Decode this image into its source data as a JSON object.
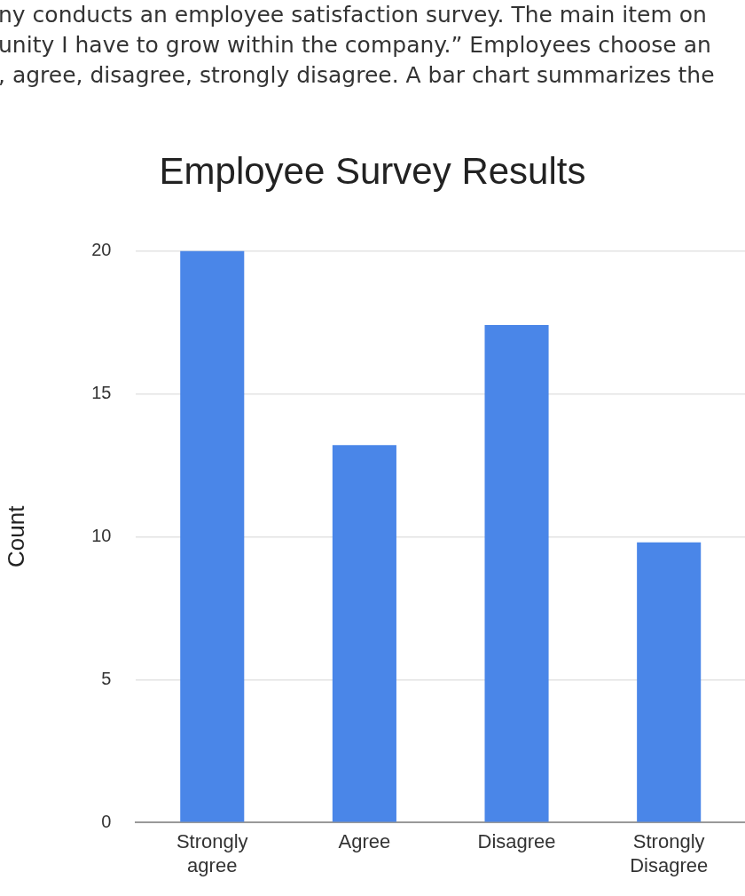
{
  "chart_data": {
    "type": "bar",
    "title": "Employee Survey Results",
    "ylabel": "Count",
    "annotations": [
      "ny conducts an employee satisfaction survey. The main item on",
      "unity I have to grow within the company.” Employees choose an",
      ", agree, disagree, strongly disagree.  A bar chart summarizes the"
    ],
    "categories": [
      "Strongly agree",
      "Agree",
      "Disagree",
      "Strongly Disagree"
    ],
    "values": [
      20,
      13.2,
      17.4,
      9.8
    ],
    "color": "#4a86e8",
    "ylim": [
      0,
      20
    ],
    "yticks": [
      0,
      5,
      10,
      15,
      20
    ],
    "grid": "y",
    "legend": false
  }
}
